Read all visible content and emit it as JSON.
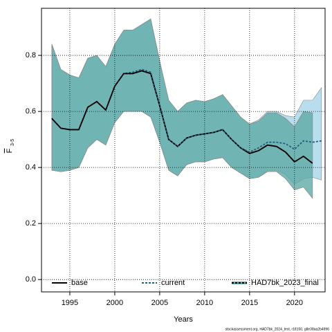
{
  "chart_data": {
    "type": "line",
    "xlabel": "Years",
    "ylabel": {
      "symbol": "F",
      "subscript": "3-5"
    },
    "caption": "stockassessment.org, HAD7bk_2024_test, r18150, g8e38aa2b4996",
    "x": [
      1993,
      1994,
      1995,
      1996,
      1997,
      1998,
      1999,
      2000,
      2001,
      2002,
      2003,
      2004,
      2005,
      2006,
      2007,
      2008,
      2009,
      2010,
      2011,
      2012,
      2013,
      2014,
      2015,
      2016,
      2017,
      2018,
      2019,
      2020,
      2021,
      2022,
      2023
    ],
    "xlim": [
      1991.85,
      2023.4
    ],
    "ylim": [
      -0.044,
      0.968
    ],
    "xticks": [
      1995,
      2000,
      2005,
      2010,
      2015,
      2020
    ],
    "yticks": [
      {
        "value": 0,
        "label": "0.0"
      },
      0.2,
      0.4,
      0.6,
      0.8
    ],
    "grid": true,
    "legend": "bottom",
    "series": [
      {
        "name": "current",
        "color": "#1f5f7a",
        "linestyle": "dashed",
        "fill": "#a6d5e8",
        "values": [
          0.575,
          0.54,
          0.535,
          0.535,
          0.615,
          0.635,
          0.605,
          0.69,
          0.735,
          0.74,
          0.75,
          0.74,
          0.62,
          0.5,
          0.475,
          0.505,
          0.515,
          0.52,
          0.525,
          0.535,
          0.5,
          0.47,
          0.455,
          0.47,
          0.49,
          0.49,
          0.485,
          0.465,
          0.495,
          0.49,
          0.495
        ],
        "upper": [
          0.84,
          0.75,
          0.73,
          0.72,
          0.79,
          0.8,
          0.76,
          0.84,
          0.89,
          0.89,
          0.91,
          0.93,
          0.78,
          0.64,
          0.6,
          0.63,
          0.64,
          0.635,
          0.645,
          0.66,
          0.62,
          0.58,
          0.555,
          0.57,
          0.6,
          0.6,
          0.585,
          0.58,
          0.64,
          0.64,
          0.685
        ],
        "lower": [
          0.39,
          0.385,
          0.39,
          0.4,
          0.47,
          0.5,
          0.48,
          0.56,
          0.6,
          0.6,
          0.6,
          0.58,
          0.49,
          0.39,
          0.37,
          0.41,
          0.42,
          0.42,
          0.43,
          0.435,
          0.4,
          0.38,
          0.36,
          0.365,
          0.39,
          0.39,
          0.375,
          0.34,
          0.36,
          0.365,
          0.355
        ]
      },
      {
        "name": "base",
        "color": "#000000",
        "linestyle": "solid",
        "fill": "#5faaa5",
        "values": [
          0.575,
          0.54,
          0.535,
          0.535,
          0.615,
          0.635,
          0.605,
          0.69,
          0.735,
          0.735,
          0.745,
          0.735,
          0.62,
          0.5,
          0.475,
          0.505,
          0.515,
          0.52,
          0.525,
          0.535,
          0.5,
          0.47,
          0.45,
          0.46,
          0.48,
          0.475,
          0.455,
          0.42,
          0.44,
          0.415,
          null
        ],
        "upper": [
          0.84,
          0.75,
          0.73,
          0.72,
          0.79,
          0.8,
          0.76,
          0.84,
          0.89,
          0.89,
          0.91,
          0.93,
          0.78,
          0.64,
          0.6,
          0.63,
          0.64,
          0.635,
          0.645,
          0.66,
          0.62,
          0.58,
          0.555,
          0.565,
          0.595,
          0.595,
          0.575,
          0.545,
          0.6,
          0.595,
          null
        ],
        "lower": [
          0.39,
          0.385,
          0.39,
          0.4,
          0.47,
          0.5,
          0.48,
          0.56,
          0.6,
          0.6,
          0.6,
          0.58,
          0.49,
          0.39,
          0.37,
          0.41,
          0.42,
          0.42,
          0.43,
          0.435,
          0.4,
          0.38,
          0.36,
          0.365,
          0.385,
          0.385,
          0.36,
          0.32,
          0.33,
          0.29,
          null
        ]
      },
      {
        "name": "HAD7bk_2023_final",
        "color": "#000000",
        "linestyle": "dashed",
        "fill": "#5faaa5",
        "values": [
          0.575,
          0.54,
          0.535,
          0.535,
          0.615,
          0.635,
          0.605,
          0.69,
          0.735,
          0.735,
          0.745,
          0.735,
          0.62,
          0.5,
          0.475,
          0.505,
          0.515,
          0.52,
          0.525,
          0.535,
          0.5,
          0.47,
          0.45,
          0.46,
          0.48,
          0.475,
          0.455,
          0.42,
          0.44,
          0.415,
          null
        ],
        "upper": [
          0.84,
          0.75,
          0.73,
          0.72,
          0.79,
          0.8,
          0.76,
          0.84,
          0.89,
          0.89,
          0.91,
          0.93,
          0.78,
          0.64,
          0.6,
          0.63,
          0.64,
          0.635,
          0.645,
          0.66,
          0.62,
          0.58,
          0.555,
          0.565,
          0.595,
          0.595,
          0.575,
          0.545,
          0.6,
          0.595,
          null
        ],
        "lower": [
          0.39,
          0.385,
          0.39,
          0.4,
          0.47,
          0.5,
          0.48,
          0.56,
          0.6,
          0.6,
          0.6,
          0.58,
          0.49,
          0.39,
          0.37,
          0.41,
          0.42,
          0.42,
          0.43,
          0.435,
          0.4,
          0.38,
          0.36,
          0.365,
          0.385,
          0.385,
          0.36,
          0.32,
          0.33,
          0.29,
          null
        ]
      }
    ]
  }
}
